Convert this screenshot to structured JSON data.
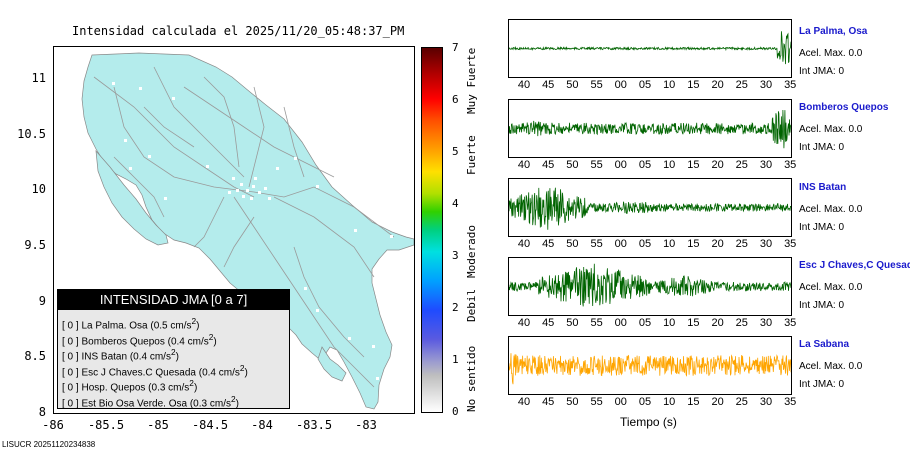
{
  "chart_data": [
    {
      "type": "map",
      "title": "Intensidad calculada el 2025/11/20_05:48:37_PM",
      "x_ticks": [
        "-86",
        "-85.5",
        "-85",
        "-84.5",
        "-84",
        "-83.5",
        "-83"
      ],
      "y_ticks": [
        "11",
        "10.5",
        "10",
        "9.5",
        "9",
        "8.5",
        "8"
      ],
      "xlim": [
        -86,
        -82.5
      ],
      "ylim": [
        8,
        11.3
      ],
      "land_color": "#b4ecec",
      "legend": {
        "header": "INTENSIDAD JMA [0 a 7]",
        "rows": [
          {
            "bracket": "[ 0 ]",
            "text": "La Palma. Osa (0.5 cm/s",
            "sup": "2",
            "end": ")"
          },
          {
            "bracket": "[ 0 ]",
            "text": "Bomberos Quepos (0.4 cm/s",
            "sup": "2",
            "end": ")"
          },
          {
            "bracket": "[ 0 ]",
            "text": "INS Batan (0.4 cm/s",
            "sup": "2",
            "end": ")"
          },
          {
            "bracket": "[ 0 ]",
            "text": "Esc J Chaves.C Quesada (0.4 cm/s",
            "sup": "2",
            "end": ")"
          },
          {
            "bracket": "[ 0 ]",
            "text": "Hosp. Quepos (0.3 cm/s",
            "sup": "2",
            "end": ")"
          },
          {
            "bracket": "[ 0 ]",
            "text": "Est Bio Osa Verde. Osa (0.3 cm/s",
            "sup": "2",
            "end": ")"
          }
        ]
      },
      "colorbar": {
        "ticks": [
          "0",
          "1",
          "2",
          "3",
          "4",
          "5",
          "6",
          "7"
        ],
        "labels": [
          "No sentido",
          "Debil",
          "Moderado",
          "Fuerte",
          "Muy Fuerte"
        ],
        "range": [
          0,
          7
        ]
      }
    },
    {
      "type": "line",
      "xlabel": "Tiempo (s)",
      "x_ticks": [
        "40",
        "45",
        "50",
        "55",
        "00",
        "05",
        "10",
        "15",
        "20",
        "25",
        "30",
        "35"
      ],
      "series": [
        {
          "name": "La Palma, Osa",
          "acel_label": "Acel. Max. 0.0",
          "int_label": "Int JMA: 0",
          "color": "#006400",
          "quiet_amp": 0.02,
          "bursts": [
            {
              "start": 0.95,
              "end": 1.0,
              "amp": 0.45
            }
          ]
        },
        {
          "name": "Bomberos Quepos",
          "acel_label": "Acel. Max. 0.0",
          "int_label": "Int JMA: 0",
          "color": "#006400",
          "quiet_amp": 0.1,
          "bursts": [
            {
              "start": 0.0,
              "end": 0.2,
              "amp": 0.15
            },
            {
              "start": 0.93,
              "end": 1.0,
              "amp": 0.45
            }
          ]
        },
        {
          "name": "INS Batan",
          "acel_label": "Acel. Max. 0.0",
          "int_label": "Int JMA: 0",
          "color": "#006400",
          "quiet_amp": 0.07,
          "bursts": [
            {
              "start": 0.0,
              "end": 0.28,
              "amp": 0.42
            },
            {
              "start": 0.28,
              "end": 0.6,
              "amp": 0.12
            }
          ]
        },
        {
          "name": "Esc J Chaves,C Quesada",
          "acel_label": "Acel. Max. 0.0",
          "int_label": "Int JMA: 0",
          "color": "#006400",
          "quiet_amp": 0.08,
          "bursts": [
            {
              "start": 0.1,
              "end": 0.5,
              "amp": 0.42
            },
            {
              "start": 0.5,
              "end": 0.75,
              "amp": 0.2
            }
          ]
        },
        {
          "name": "La Sabana",
          "acel_label": "Acel. Max. 0.0",
          "int_label": "Int JMA: 0",
          "color": "#ffa500",
          "quiet_amp": 0.18,
          "bursts": [
            {
              "start": 0.0,
              "end": 0.03,
              "amp": 0.45
            }
          ]
        }
      ]
    }
  ],
  "footer": "LISUCR 20251120234838"
}
